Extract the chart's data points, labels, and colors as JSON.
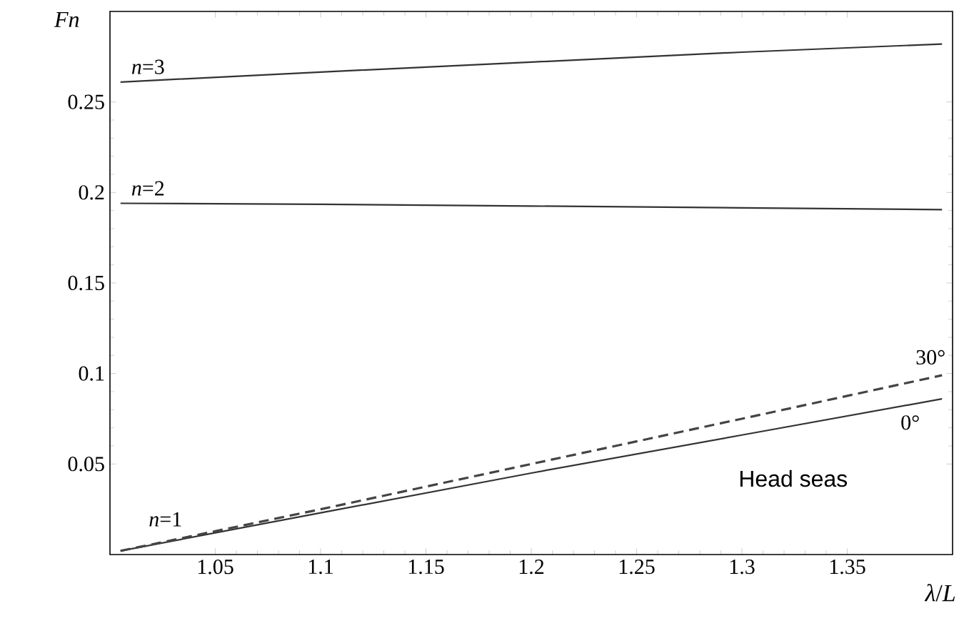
{
  "chart_data": {
    "type": "line",
    "xlabel": "*λ*/*L*",
    "ylabel": "*Fn*",
    "xlim": [
      1.0,
      1.4
    ],
    "ylim": [
      0,
      0.3
    ],
    "xticks": [
      1.05,
      1.1,
      1.15,
      1.2,
      1.25,
      1.3,
      1.35
    ],
    "yticks": [
      0.05,
      0.1,
      0.15,
      0.2,
      0.25
    ],
    "grid": false,
    "marker": "none",
    "series": [
      {
        "name": "*n*=3",
        "color": "#333333",
        "line_style": "solid",
        "x": [
          1.005,
          1.1,
          1.2,
          1.3,
          1.395
        ],
        "values": [
          0.261,
          0.2665,
          0.272,
          0.2775,
          0.282
        ]
      },
      {
        "name": "*n*=2",
        "color": "#333333",
        "line_style": "solid",
        "x": [
          1.005,
          1.1,
          1.2,
          1.3,
          1.395
        ],
        "values": [
          0.194,
          0.1935,
          0.1925,
          0.1915,
          0.1905
        ]
      },
      {
        "name": "0°",
        "color": "#333333",
        "line_style": "solid",
        "x": [
          1.005,
          1.1,
          1.2,
          1.3,
          1.395
        ],
        "values": [
          0.002,
          0.023,
          0.045,
          0.066,
          0.086
        ]
      },
      {
        "name": "30°",
        "color": "#444444",
        "line_style": "dashed",
        "x": [
          1.005,
          1.1,
          1.2,
          1.3,
          1.395
        ],
        "values": [
          0.002,
          0.025,
          0.05,
          0.075,
          0.099
        ]
      }
    ],
    "annotations": [
      "*n*=1",
      "Head seas"
    ]
  }
}
